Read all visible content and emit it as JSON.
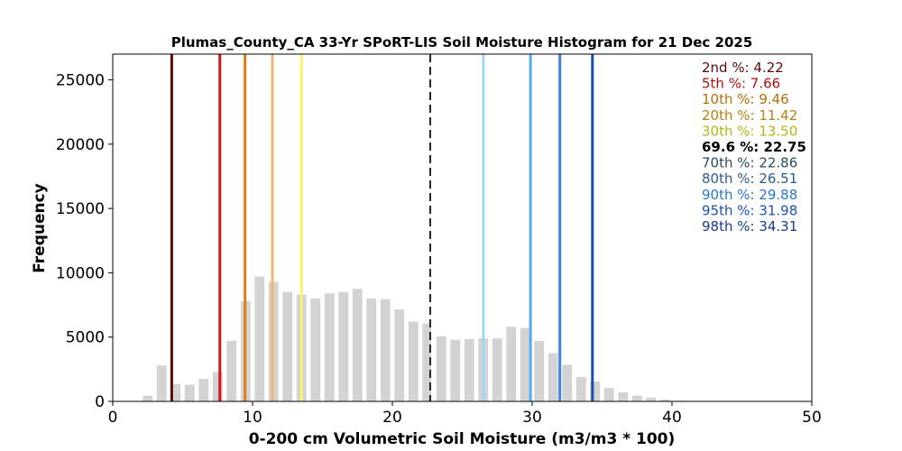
{
  "chart_data": {
    "type": "bar",
    "title": "Plumas_County_CA 33-Yr SPoRT-LIS Soil Moisture Histogram for 21 Dec 2025",
    "xlabel": "0-200 cm Volumetric Soil Moisture (m3/m3 * 100)",
    "ylabel": "Frequency",
    "xlim": [
      0,
      50
    ],
    "ylim": [
      0,
      27000
    ],
    "xticks": [
      "0",
      "10",
      "20",
      "30",
      "40",
      "50"
    ],
    "yticks": [
      "0",
      "5000",
      "10000",
      "15000",
      "20000",
      "25000"
    ],
    "bar_color": "#d3d3d3",
    "bar_width": 0.7,
    "bins": {
      "x": [
        2.5,
        3.5,
        4.5,
        5.5,
        6.5,
        7.5,
        8.5,
        9.5,
        10.5,
        11.5,
        12.5,
        13.5,
        14.5,
        15.5,
        16.5,
        17.5,
        18.5,
        19.5,
        20.5,
        21.5,
        22.5,
        23.5,
        24.5,
        25.5,
        26.5,
        27.5,
        28.5,
        29.5,
        30.5,
        31.5,
        32.5,
        33.5,
        34.5,
        35.5,
        36.5,
        37.5,
        38.5,
        39.5,
        40.5
      ],
      "values": [
        450,
        2800,
        1350,
        1300,
        1750,
        2300,
        4700,
        7800,
        9700,
        9300,
        8500,
        8300,
        8000,
        8400,
        8500,
        8750,
        8000,
        7950,
        7150,
        6200,
        6050,
        5050,
        4800,
        4850,
        4900,
        4900,
        5800,
        5700,
        4700,
        3750,
        2850,
        1900,
        1550,
        1050,
        700,
        450,
        300,
        150,
        50
      ]
    },
    "percentile_lines": [
      {
        "label": "2nd %: 4.22",
        "value": 4.22,
        "color": "#5a0a0a",
        "dashed": false
      },
      {
        "label": "5th %: 7.66",
        "value": 7.66,
        "color": "#d91414",
        "dashed": false
      },
      {
        "label": "10th %: 9.46",
        "value": 9.46,
        "color": "#e07f14",
        "dashed": false
      },
      {
        "label": "20th %: 11.42",
        "value": 11.42,
        "color": "#f2b477",
        "dashed": false
      },
      {
        "label": "30th %: 13.50",
        "value": 13.5,
        "color": "#fbf26b",
        "dashed": false
      },
      {
        "label": "69.6 %: 22.75",
        "value": 22.75,
        "color": "#000000",
        "dashed": true
      },
      {
        "label": "70th %: 22.86",
        "value": 22.86,
        "color": "#ffffff",
        "dashed": false
      },
      {
        "label": "80th %: 26.51",
        "value": 26.51,
        "color": "#9fd4f2",
        "dashed": false
      },
      {
        "label": "90th %: 29.88",
        "value": 29.88,
        "color": "#5aaaf0",
        "dashed": false
      },
      {
        "label": "95th %: 31.98",
        "value": 31.98,
        "color": "#3c82e0",
        "dashed": false
      },
      {
        "label": "98th %: 34.31",
        "value": 34.31,
        "color": "#1450b4",
        "dashed": false
      }
    ],
    "annotation_colors": [
      "#5a0a0a",
      "#b40f0f",
      "#b46e0a",
      "#b48214",
      "#b4b414",
      "#000000",
      "#2d4b5a",
      "#2d5a8c",
      "#2d73c8",
      "#1e50b4",
      "#143c8c"
    ],
    "legend_placement": "top-right",
    "grid": false
  }
}
